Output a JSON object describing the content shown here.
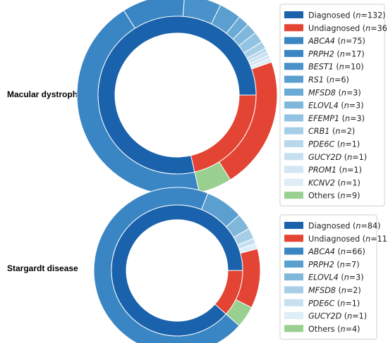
{
  "chart_data": [
    {
      "type": "pie",
      "subtype": "nested-donut",
      "row_label": "Macular dystrophies",
      "inner_ring": [
        {
          "label": "Diagnosed",
          "n": 132,
          "color": "#1a62ab"
        },
        {
          "label": "Undiagnosed",
          "n": 36,
          "color": "#e34433"
        }
      ],
      "outer_ring": [
        {
          "label": "ABCA4",
          "n": 75,
          "italic": true,
          "color": "#3a86c4"
        },
        {
          "label": "PRPH2",
          "n": 17,
          "italic": true,
          "color": "#3a86c4"
        },
        {
          "label": "BEST1",
          "n": 10,
          "italic": true,
          "color": "#4a92ca"
        },
        {
          "label": "RS1",
          "n": 6,
          "italic": true,
          "color": "#5a9fd0"
        },
        {
          "label": "MFSD8",
          "n": 3,
          "italic": true,
          "color": "#6aaad6"
        },
        {
          "label": "ELOVL4",
          "n": 3,
          "italic": true,
          "color": "#7fb7db"
        },
        {
          "label": "EFEMP1",
          "n": 3,
          "italic": true,
          "color": "#92c3e2"
        },
        {
          "label": "CRB1",
          "n": 2,
          "italic": true,
          "color": "#a6cfe7"
        },
        {
          "label": "PDE6C",
          "n": 1,
          "italic": true,
          "color": "#b8d8ec"
        },
        {
          "label": "GUCY2D",
          "n": 1,
          "italic": true,
          "color": "#c6e0f0"
        },
        {
          "label": "PROM1",
          "n": 1,
          "italic": true,
          "color": "#d2e6f3"
        },
        {
          "label": "KCNV2",
          "n": 1,
          "italic": true,
          "color": "#deedf6"
        },
        {
          "label": "Undiagnosed",
          "n": 36,
          "italic": false,
          "color": "#e34433",
          "legend": false
        },
        {
          "label": "Others",
          "n": 9,
          "italic": false,
          "color": "#99cf8f"
        }
      ]
    },
    {
      "type": "pie",
      "subtype": "nested-donut",
      "row_label": "Stargardt disease",
      "inner_ring": [
        {
          "label": "Diagnosed",
          "n": 84,
          "color": "#1a62ab"
        },
        {
          "label": "Undiagnosed",
          "n": 11,
          "color": "#e34433"
        }
      ],
      "outer_ring": [
        {
          "label": "ABCA4",
          "n": 66,
          "italic": true,
          "color": "#3a86c4"
        },
        {
          "label": "PRPH2",
          "n": 7,
          "italic": true,
          "color": "#5a9fd0"
        },
        {
          "label": "ELOVL4",
          "n": 3,
          "italic": true,
          "color": "#7fb7db"
        },
        {
          "label": "MFSD8",
          "n": 2,
          "italic": true,
          "color": "#a6cfe7"
        },
        {
          "label": "PDE6C",
          "n": 1,
          "italic": true,
          "color": "#c6e0f0"
        },
        {
          "label": "GUCY2D",
          "n": 1,
          "italic": true,
          "color": "#deedf6"
        },
        {
          "label": "Undiagnosed",
          "n": 11,
          "italic": false,
          "color": "#e34433",
          "legend": false
        },
        {
          "label": "Others",
          "n": 4,
          "italic": false,
          "color": "#99cf8f"
        }
      ]
    }
  ]
}
